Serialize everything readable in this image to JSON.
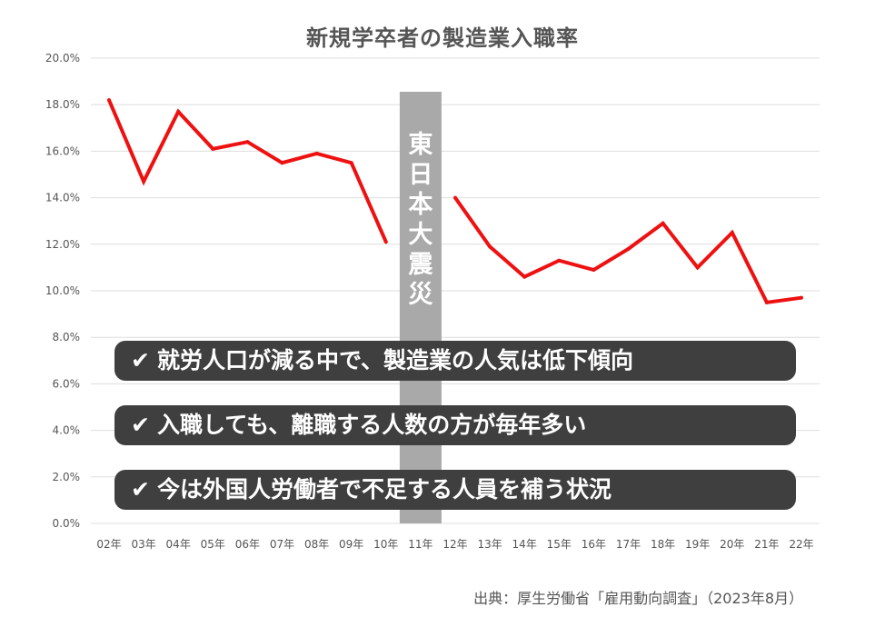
{
  "chart_data": {
    "type": "line",
    "title": "新規学卒者の製造業入職率",
    "categories": [
      "02年",
      "03年",
      "04年",
      "05年",
      "06年",
      "07年",
      "08年",
      "09年",
      "10年",
      "11年",
      "12年",
      "13年",
      "14年",
      "15年",
      "16年",
      "17年",
      "18年",
      "19年",
      "20年",
      "21年",
      "22年"
    ],
    "series": [
      {
        "values": [
          18.2,
          14.7,
          17.7,
          16.1,
          16.4,
          15.5,
          15.9,
          15.5,
          12.1,
          null,
          14.0,
          11.9,
          10.6,
          11.3,
          10.9,
          11.8,
          12.9,
          11.0,
          12.5,
          9.5,
          9.7
        ]
      }
    ],
    "ylim": [
      0,
      20
    ],
    "yticks": [
      "0.0%",
      "2.0%",
      "4.0%",
      "6.0%",
      "8.0%",
      "10.0%",
      "12.0%",
      "14.0%",
      "16.0%",
      "18.0%",
      "20.0%"
    ],
    "grid": true,
    "annotation": {
      "category": "11年",
      "label": "東日本大震災"
    },
    "colors": {
      "line": "#ee1111",
      "band": "#a9a9a9",
      "grid": "#dddddd"
    }
  },
  "callouts": [
    {
      "check": "✔",
      "text": "就労人口が減る中で、製造業の人気は低下傾向"
    },
    {
      "check": "✔",
      "text": "入職しても、離職する人数の方が毎年多い"
    },
    {
      "check": "✔",
      "text": "今は外国人労働者で不足する人員を補う状況"
    }
  ],
  "source": "出典：厚生労働省「雇用動向調査」（2023年8月）"
}
